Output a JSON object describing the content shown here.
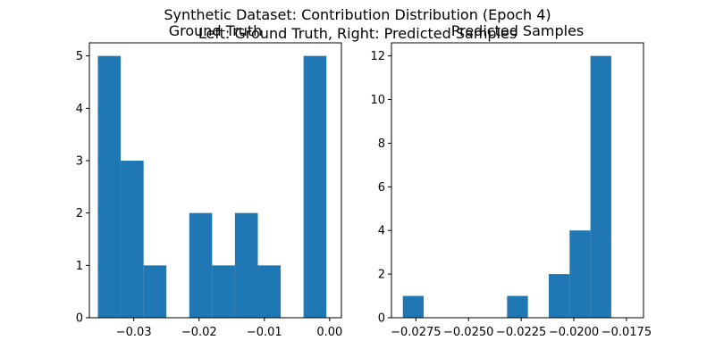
{
  "figure": {
    "suptitle_line1": "Synthetic Dataset: Contribution Distribution (Epoch 4)",
    "suptitle_line2": "Left: Ground Truth, Right: Predicted Samples"
  },
  "chart_data": [
    {
      "type": "bar",
      "subtype": "histogram",
      "title": "Ground Truth",
      "xlabel": "",
      "ylabel": "",
      "bar_color": "#1f77b4",
      "xlim": [
        -0.0368,
        0.0018
      ],
      "ylim": [
        0,
        5.25
      ],
      "xticks": [
        -0.03,
        -0.02,
        -0.01,
        0.0
      ],
      "xtick_labels": [
        "−0.03",
        "−0.02",
        "−0.01",
        "0.00"
      ],
      "yticks": [
        0,
        1,
        2,
        3,
        4,
        5
      ],
      "ytick_labels": [
        "0",
        "1",
        "2",
        "3",
        "4",
        "5"
      ],
      "bins": [
        {
          "x0": -0.0355,
          "x1": -0.032,
          "count": 5
        },
        {
          "x0": -0.032,
          "x1": -0.0285,
          "count": 3
        },
        {
          "x0": -0.0285,
          "x1": -0.025,
          "count": 1
        },
        {
          "x0": -0.025,
          "x1": -0.0215,
          "count": 0
        },
        {
          "x0": -0.0215,
          "x1": -0.018,
          "count": 2
        },
        {
          "x0": -0.018,
          "x1": -0.0145,
          "count": 1
        },
        {
          "x0": -0.0145,
          "x1": -0.011,
          "count": 2
        },
        {
          "x0": -0.011,
          "x1": -0.0075,
          "count": 1
        },
        {
          "x0": -0.0075,
          "x1": -0.004,
          "count": 0
        },
        {
          "x0": -0.004,
          "x1": -0.0005,
          "count": 5
        }
      ]
    },
    {
      "type": "bar",
      "subtype": "histogram",
      "title": "Predicted Samples",
      "xlabel": "",
      "ylabel": "",
      "bar_color": "#1f77b4",
      "xlim": [
        -0.02866,
        -0.01669
      ],
      "ylim": [
        0,
        12.6
      ],
      "xticks": [
        -0.0275,
        -0.025,
        -0.0225,
        -0.02,
        -0.0175
      ],
      "xtick_labels": [
        "−0.0275",
        "−0.0250",
        "−0.0225",
        "−0.0200",
        "−0.0175"
      ],
      "yticks": [
        0,
        2,
        4,
        6,
        8,
        10,
        12
      ],
      "ytick_labels": [
        "0",
        "2",
        "4",
        "6",
        "8",
        "10",
        "12"
      ],
      "bins": [
        {
          "x0": -0.02812,
          "x1": -0.02713,
          "count": 1
        },
        {
          "x0": -0.02713,
          "x1": -0.02614,
          "count": 0
        },
        {
          "x0": -0.02614,
          "x1": -0.02515,
          "count": 0
        },
        {
          "x0": -0.02515,
          "x1": -0.02416,
          "count": 0
        },
        {
          "x0": -0.02416,
          "x1": -0.02317,
          "count": 0
        },
        {
          "x0": -0.02317,
          "x1": -0.02218,
          "count": 1
        },
        {
          "x0": -0.02218,
          "x1": -0.02119,
          "count": 0
        },
        {
          "x0": -0.02119,
          "x1": -0.0202,
          "count": 2
        },
        {
          "x0": -0.0202,
          "x1": -0.01921,
          "count": 4
        },
        {
          "x0": -0.01921,
          "x1": -0.01822,
          "count": 12
        }
      ]
    }
  ]
}
